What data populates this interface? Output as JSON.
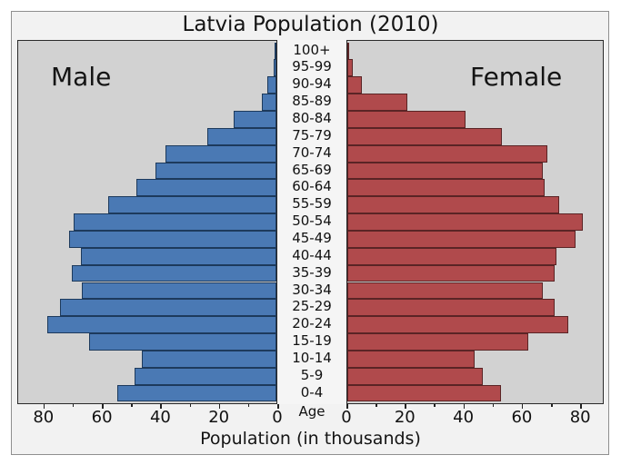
{
  "title": "Latvia Population (2010)",
  "xlabel": "Population (in thousands)",
  "age_axis_label": "Age",
  "male_label": "Male",
  "female_label": "Female",
  "colors": {
    "male_bar": "#4a79b4",
    "male_bar_edge": "#1d3a5c",
    "female_bar": "#b04a4c",
    "female_bar_edge": "#5a2425",
    "panel_background": "#d2d2d2",
    "figure_background": "#f2f2f2",
    "axis_text": "#111111"
  },
  "chart_data": {
    "type": "bar",
    "subtype": "population-pyramid",
    "title": "Latvia Population (2010)",
    "xlabel": "Population (in thousands)",
    "unit": "thousands",
    "grid": false,
    "age_groups_top_to_bottom": [
      "100+",
      "95-99",
      "90-94",
      "85-89",
      "80-84",
      "75-79",
      "70-74",
      "65-69",
      "60-64",
      "55-59",
      "50-54",
      "45-49",
      "40-44",
      "35-39",
      "30-34",
      "25-29",
      "20-24",
      "15-19",
      "10-14",
      "5-9",
      "0-4"
    ],
    "series": [
      {
        "name": "Male",
        "side": "left",
        "values": [
          0.2,
          1.0,
          3.0,
          5.0,
          14.5,
          23.5,
          38,
          41.5,
          48,
          57.5,
          69.5,
          71,
          67,
          70,
          66.5,
          74,
          78.5,
          64,
          46,
          48.5,
          54.5
        ]
      },
      {
        "name": "Female",
        "side": "right",
        "values": [
          0.5,
          2.0,
          5.0,
          20.5,
          40.5,
          53,
          68.5,
          67,
          67.5,
          72.5,
          80.5,
          78,
          71.5,
          71,
          67,
          71,
          75.5,
          62,
          43.5,
          46.5,
          52.5
        ]
      }
    ],
    "x_axis": {
      "left_panel_tick_labels": [
        "80",
        "60",
        "40",
        "20",
        "0"
      ],
      "right_panel_tick_labels": [
        "0",
        "20",
        "40",
        "60",
        "80"
      ],
      "major_tick_step": 20,
      "minor_tick_step": 10,
      "range": [
        0,
        88.9
      ]
    }
  }
}
